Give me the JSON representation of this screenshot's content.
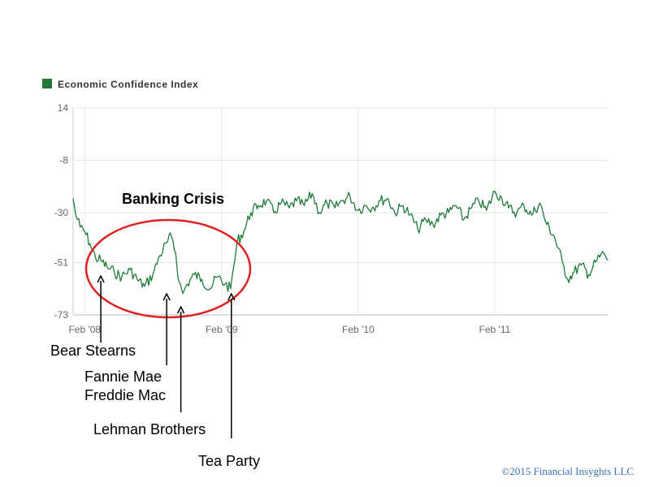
{
  "chart_data": {
    "type": "line",
    "title": "",
    "xlabel": "",
    "ylabel": "",
    "legend": {
      "position": "top-left",
      "entries": [
        "Economic Confidence Index"
      ]
    },
    "grid": true,
    "x_tick_labels": [
      "Feb '08",
      "Feb '09",
      "Feb '10",
      "Feb '11"
    ],
    "y_tick_labels": [
      "14",
      "-8",
      "-30",
      "-51",
      "-73"
    ],
    "y_ticks": [
      14,
      -8,
      -30,
      -51,
      -73
    ],
    "ylim": [
      -73,
      14
    ],
    "xlim": [
      "2008-01-01",
      "2011-11-30"
    ],
    "series": [
      {
        "name": "Economic Confidence Index",
        "color": "#1f7a3a",
        "x": [
          "2008-01-01",
          "2008-01-08",
          "2008-01-20",
          "2008-02-01",
          "2008-02-15",
          "2008-03-01",
          "2008-03-15",
          "2008-04-01",
          "2008-04-20",
          "2008-05-10",
          "2008-06-01",
          "2008-06-20",
          "2008-07-10",
          "2008-08-01",
          "2008-08-20",
          "2008-09-10",
          "2008-09-20",
          "2008-10-01",
          "2008-10-10",
          "2008-10-20",
          "2008-11-01",
          "2008-11-20",
          "2008-12-10",
          "2009-01-01",
          "2009-01-20",
          "2009-02-10",
          "2009-02-25",
          "2009-03-05",
          "2009-03-15",
          "2009-04-01",
          "2009-04-20",
          "2009-05-10",
          "2009-06-01",
          "2009-06-20",
          "2009-07-10",
          "2009-08-01",
          "2009-08-20",
          "2009-09-10",
          "2009-10-01",
          "2009-10-20",
          "2009-11-10",
          "2009-12-01",
          "2009-12-20",
          "2010-01-10",
          "2010-02-01",
          "2010-02-20",
          "2010-03-10",
          "2010-04-01",
          "2010-04-20",
          "2010-05-10",
          "2010-06-01",
          "2010-06-20",
          "2010-07-10",
          "2010-08-01",
          "2010-08-20",
          "2010-09-10",
          "2010-10-01",
          "2010-10-20",
          "2010-11-10",
          "2010-12-01",
          "2010-12-20",
          "2011-01-10",
          "2011-02-01",
          "2011-02-20",
          "2011-03-10",
          "2011-04-01",
          "2011-04-20",
          "2011-05-10",
          "2011-06-01",
          "2011-06-20",
          "2011-07-10",
          "2011-08-01",
          "2011-08-15",
          "2011-09-01",
          "2011-09-20",
          "2011-10-10",
          "2011-11-01",
          "2011-11-20",
          "2011-11-30"
        ],
        "values": [
          -24,
          -31,
          -36,
          -38,
          -43,
          -49,
          -50,
          -53,
          -55,
          -57,
          -54,
          -58,
          -61,
          -56,
          -48,
          -42,
          -40,
          -47,
          -59,
          -64,
          -60,
          -56,
          -58,
          -62,
          -57,
          -60,
          -62,
          -53,
          -42,
          -38,
          -30,
          -27,
          -25,
          -30,
          -26,
          -28,
          -25,
          -27,
          -22,
          -30,
          -26,
          -28,
          -25,
          -23,
          -29,
          -27,
          -28,
          -25,
          -24,
          -30,
          -27,
          -31,
          -37,
          -33,
          -35,
          -31,
          -30,
          -27,
          -33,
          -28,
          -25,
          -29,
          -21,
          -24,
          -28,
          -30,
          -27,
          -31,
          -26,
          -35,
          -40,
          -51,
          -58,
          -55,
          -52,
          -56,
          -50,
          -47,
          -50
        ]
      }
    ],
    "highlight": {
      "label": "Banking Crisis",
      "shape": "ellipse",
      "color": "#e02020"
    },
    "annotations": [
      {
        "lines": [
          "Bear Stearns"
        ],
        "x": "2008-03-15"
      },
      {
        "lines": [
          "Fannie Mae",
          "Freddie Mac"
        ],
        "x": "2008-09-07"
      },
      {
        "lines": [
          "Lehman Brothers"
        ],
        "x": "2008-10-15"
      },
      {
        "lines": [
          "Tea Party"
        ],
        "x": "2009-02-27"
      }
    ]
  },
  "copyright": "©2015 Financial Insyghts LLC"
}
